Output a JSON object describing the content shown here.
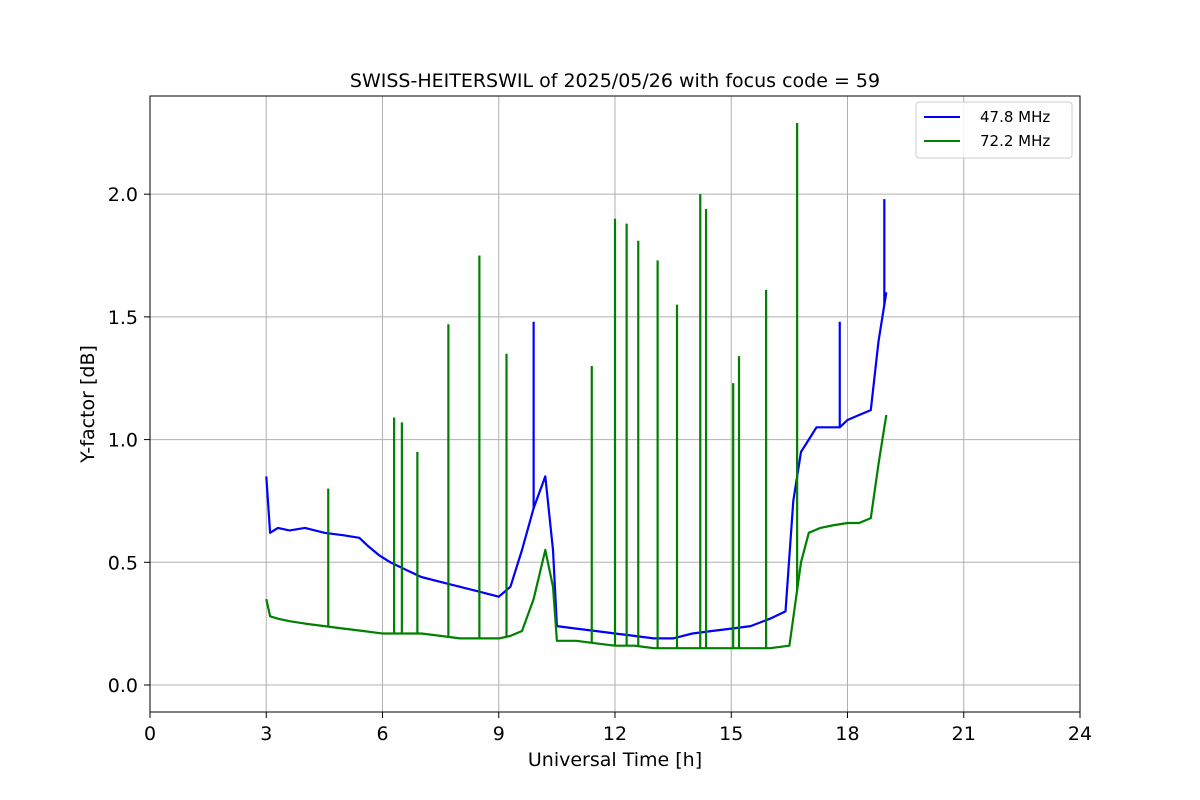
{
  "chart_data": {
    "type": "line",
    "title": "SWISS-HEITERSWIL of 2025/05/26 with focus code = 59",
    "xlabel": "Universal Time [h]",
    "ylabel": "Y-factor [dB]",
    "xlim": [
      0,
      24
    ],
    "ylim": [
      -0.11,
      2.4
    ],
    "xticks": [
      0,
      3,
      6,
      9,
      12,
      15,
      18,
      21,
      24
    ],
    "yticks": [
      0.0,
      0.5,
      1.0,
      1.5,
      2.0
    ],
    "xtick_labels": [
      "0",
      "3",
      "6",
      "9",
      "12",
      "15",
      "18",
      "21",
      "24"
    ],
    "ytick_labels": [
      "0.0",
      "0.5",
      "1.0",
      "1.5",
      "2.0"
    ],
    "grid": true,
    "legend_position": "top-right",
    "series": [
      {
        "name": "47.8 MHz",
        "color": "#0000ff",
        "x": [
          3.0,
          3.1,
          3.3,
          3.6,
          4.0,
          4.5,
          5.0,
          5.4,
          5.6,
          5.9,
          6.2,
          6.6,
          7.0,
          7.5,
          8.0,
          8.5,
          9.0,
          9.3,
          9.6,
          9.9,
          10.2,
          10.4,
          10.5,
          11.0,
          11.5,
          12.0,
          12.5,
          13.0,
          13.5,
          14.0,
          14.5,
          15.0,
          15.5,
          16.0,
          16.4,
          16.6,
          16.8,
          17.0,
          17.2,
          17.5,
          17.8,
          18.0,
          18.3,
          18.6,
          18.8,
          19.0
        ],
        "y": [
          0.85,
          0.62,
          0.64,
          0.63,
          0.64,
          0.62,
          0.61,
          0.6,
          0.57,
          0.53,
          0.5,
          0.47,
          0.44,
          0.42,
          0.4,
          0.38,
          0.36,
          0.4,
          0.55,
          0.72,
          0.85,
          0.55,
          0.24,
          0.23,
          0.22,
          0.21,
          0.2,
          0.19,
          0.19,
          0.21,
          0.22,
          0.23,
          0.24,
          0.27,
          0.3,
          0.75,
          0.95,
          1.0,
          1.05,
          1.05,
          1.05,
          1.08,
          1.1,
          1.12,
          1.4,
          1.6
        ]
      },
      {
        "name": "72.2 MHz",
        "color": "#008000",
        "x": [
          3.0,
          3.1,
          3.3,
          3.6,
          4.0,
          4.5,
          5.0,
          5.5,
          6.0,
          6.5,
          7.0,
          7.5,
          8.0,
          8.5,
          9.0,
          9.3,
          9.6,
          9.9,
          10.2,
          10.4,
          10.5,
          11.0,
          11.5,
          12.0,
          12.5,
          13.0,
          13.5,
          14.0,
          14.5,
          15.0,
          15.5,
          16.0,
          16.5,
          16.8,
          17.0,
          17.3,
          17.6,
          18.0,
          18.3,
          18.6,
          18.8,
          19.0
        ],
        "y": [
          0.35,
          0.28,
          0.27,
          0.26,
          0.25,
          0.24,
          0.23,
          0.22,
          0.21,
          0.21,
          0.21,
          0.2,
          0.19,
          0.19,
          0.19,
          0.2,
          0.22,
          0.35,
          0.55,
          0.4,
          0.18,
          0.18,
          0.17,
          0.16,
          0.16,
          0.15,
          0.15,
          0.15,
          0.15,
          0.15,
          0.15,
          0.15,
          0.16,
          0.5,
          0.62,
          0.64,
          0.65,
          0.66,
          0.66,
          0.68,
          0.9,
          1.1
        ]
      }
    ],
    "spikes": [
      {
        "series": "72.2 MHz",
        "x": 4.6,
        "y": 0.8
      },
      {
        "series": "72.2 MHz",
        "x": 6.3,
        "y": 1.09
      },
      {
        "series": "72.2 MHz",
        "x": 6.5,
        "y": 1.07
      },
      {
        "series": "72.2 MHz",
        "x": 6.9,
        "y": 0.95
      },
      {
        "series": "72.2 MHz",
        "x": 7.7,
        "y": 1.47
      },
      {
        "series": "72.2 MHz",
        "x": 8.5,
        "y": 1.75
      },
      {
        "series": "72.2 MHz",
        "x": 9.2,
        "y": 1.35
      },
      {
        "series": "47.8 MHz",
        "x": 9.9,
        "y": 1.48
      },
      {
        "series": "72.2 MHz",
        "x": 11.4,
        "y": 1.3
      },
      {
        "series": "72.2 MHz",
        "x": 12.0,
        "y": 1.9
      },
      {
        "series": "72.2 MHz",
        "x": 12.3,
        "y": 1.88
      },
      {
        "series": "72.2 MHz",
        "x": 12.6,
        "y": 1.81
      },
      {
        "series": "72.2 MHz",
        "x": 13.1,
        "y": 1.73
      },
      {
        "series": "72.2 MHz",
        "x": 13.6,
        "y": 1.55
      },
      {
        "series": "72.2 MHz",
        "x": 14.2,
        "y": 2.0
      },
      {
        "series": "72.2 MHz",
        "x": 14.35,
        "y": 1.94
      },
      {
        "series": "72.2 MHz",
        "x": 15.05,
        "y": 1.23
      },
      {
        "series": "72.2 MHz",
        "x": 15.2,
        "y": 1.34
      },
      {
        "series": "72.2 MHz",
        "x": 15.9,
        "y": 1.61
      },
      {
        "series": "72.2 MHz",
        "x": 16.7,
        "y": 2.29
      },
      {
        "series": "47.8 MHz",
        "x": 17.8,
        "y": 1.48
      },
      {
        "series": "47.8 MHz",
        "x": 18.95,
        "y": 1.98
      }
    ]
  }
}
